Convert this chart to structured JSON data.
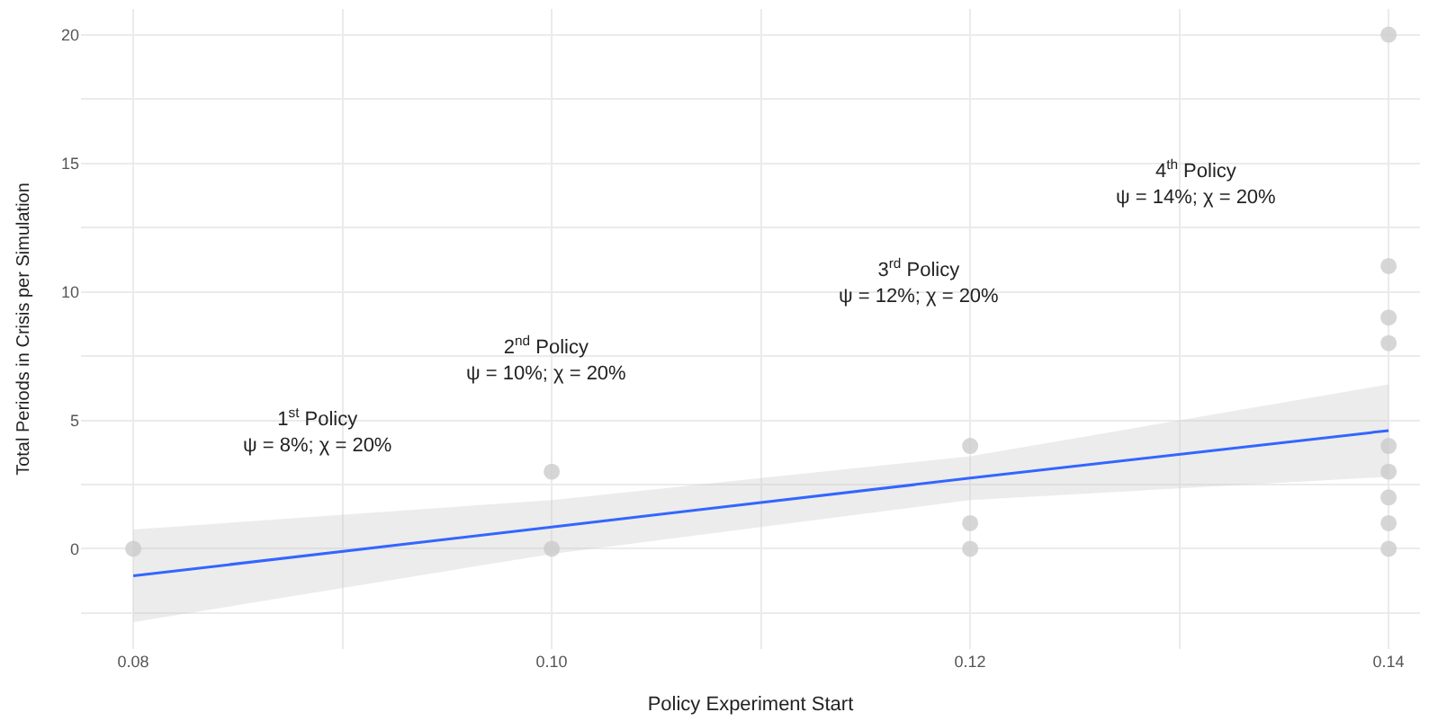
{
  "chart_data": {
    "type": "scatter",
    "xlabel": "Policy Experiment Start",
    "ylabel": "Total Periods in Crisis per Simulation",
    "series": [
      {
        "color": "#cfcfcf",
        "marker": "circle",
        "x": [
          0.08,
          0.1,
          0.1,
          0.12,
          0.12,
          0.12,
          0.14,
          0.14,
          0.14,
          0.14,
          0.14,
          0.14,
          0.14,
          0.14,
          0.14
        ],
        "values": [
          0,
          0,
          3,
          0,
          1,
          4,
          0,
          1,
          2,
          3,
          4,
          8,
          9,
          11,
          20
        ]
      },
      {
        "type": "line",
        "color": "#3366ff",
        "x": [
          0.08,
          0.1,
          0.12,
          0.14
        ],
        "values": [
          -1.05,
          0.85,
          2.75,
          4.6
        ],
        "lower": [
          -2.85,
          -0.2,
          1.9,
          2.8
        ],
        "upper": [
          0.75,
          1.9,
          3.6,
          6.4
        ]
      }
    ],
    "xlim": [
      0.0775,
      0.1415
    ],
    "ylim": [
      -3.9,
      21
    ],
    "xticks": [
      {
        "value": 0.08,
        "label": "0.08"
      },
      {
        "value": 0.09,
        "label": null
      },
      {
        "value": 0.1,
        "label": "0.10"
      },
      {
        "value": 0.11,
        "label": null
      },
      {
        "value": 0.12,
        "label": "0.12"
      },
      {
        "value": 0.13,
        "label": null
      },
      {
        "value": 0.14,
        "label": "0.14"
      }
    ],
    "yticks": [
      {
        "value": -2.5,
        "label": null
      },
      0,
      {
        "value": 2.5,
        "label": null
      },
      5,
      {
        "value": 7.5,
        "label": null
      },
      10,
      {
        "value": 12.5,
        "label": null
      },
      15,
      {
        "value": 17.5,
        "label": null
      },
      20
    ],
    "annotations": [
      "1$^{st}$ Policy\nψ = 8%; χ = 20%",
      "2$^{nd}$ Policy\nψ = 10%; χ = 20%",
      "3$^{rd}$ Policy\nψ = 12%; χ = 20%",
      "4$^{th}$ Policy\nψ = 14%; χ = 20%"
    ],
    "grid": true
  }
}
